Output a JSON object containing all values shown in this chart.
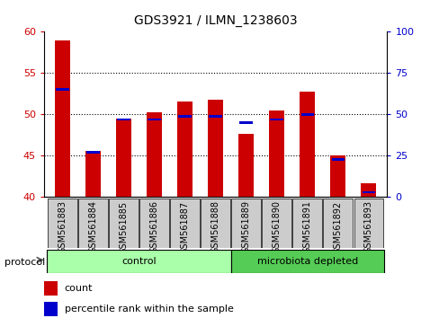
{
  "title": "GDS3921 / ILMN_1238603",
  "samples": [
    "GSM561883",
    "GSM561884",
    "GSM561885",
    "GSM561886",
    "GSM561887",
    "GSM561888",
    "GSM561889",
    "GSM561890",
    "GSM561891",
    "GSM561892",
    "GSM561893"
  ],
  "red_values": [
    59.0,
    45.6,
    49.5,
    50.3,
    51.6,
    51.8,
    47.7,
    50.5,
    52.8,
    45.1,
    41.7
  ],
  "blue_values_pct": [
    65,
    27,
    47,
    47,
    49,
    49,
    45,
    47,
    50,
    23,
    3
  ],
  "ylim_left": [
    40,
    60
  ],
  "ylim_right": [
    0,
    100
  ],
  "yticks_left": [
    40,
    45,
    50,
    55,
    60
  ],
  "yticks_right": [
    0,
    25,
    50,
    75,
    100
  ],
  "left_color": "#cc0000",
  "right_color": "#0000cc",
  "bg_color": "#ffffff",
  "control_samples": 6,
  "control_label": "control",
  "microbiota_label": "microbiota depleted",
  "control_color": "#aaffaa",
  "microbiota_color": "#55cc55",
  "protocol_label": "protocol",
  "legend_count": "count",
  "legend_pct": "percentile rank within the sample",
  "bar_width": 0.5,
  "x_bg_color": "#cccccc"
}
